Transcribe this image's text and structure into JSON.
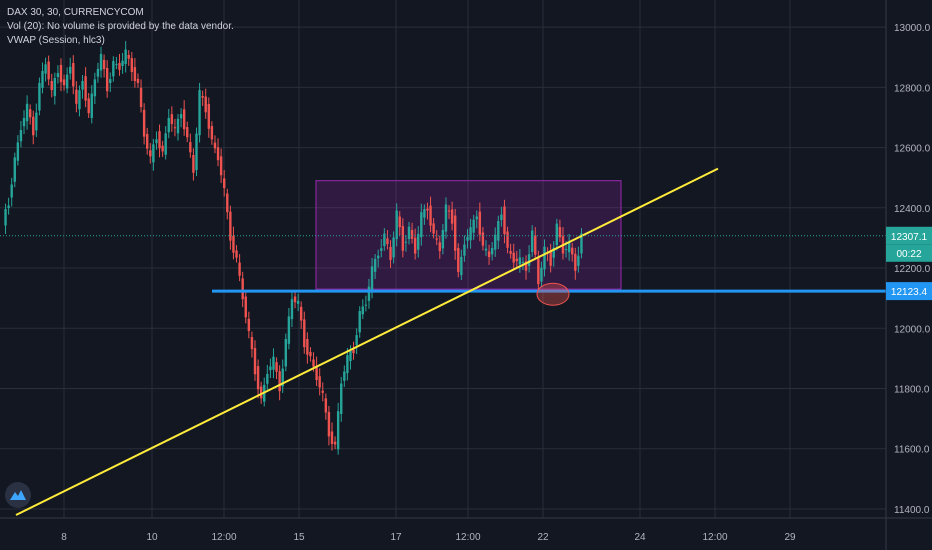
{
  "legend": {
    "symbol": "DAX 30, 30, CURRENCYCOM",
    "volume": "Vol (20): No volume is provided by the data vendor.",
    "vwap": "VWAP (Session, hlc3)"
  },
  "chart_data": {
    "type": "candlestick",
    "y_axis": {
      "ticks": [
        11400,
        11600,
        11800,
        12000,
        12200,
        12400,
        12600,
        12800,
        13000
      ],
      "labels": [
        "11400.0",
        "11600.0",
        "11800.0",
        "12000.0",
        "12200.0",
        "12400.0",
        "12600.0",
        "12800.0",
        "13000.0"
      ],
      "range": [
        11370,
        13090
      ]
    },
    "x_axis": {
      "labels": [
        "8",
        "10",
        "12:00",
        "15",
        "17",
        "12:00",
        "22",
        "24",
        "12:00",
        "29"
      ]
    },
    "last_price": {
      "value": 12307.1,
      "label": "12307.1",
      "countdown": "00:22"
    },
    "support": {
      "value": 12123.4,
      "label": "12123.4",
      "color": "#2196f3"
    },
    "trendline": {
      "color": "#ffeb3b"
    },
    "range_box": {
      "low": 12130,
      "high": 12490,
      "color": "#9c27b0"
    },
    "price_path": [
      12350,
      12420,
      12560,
      12660,
      12740,
      12650,
      12800,
      12880,
      12780,
      12860,
      12800,
      12870,
      12740,
      12830,
      12700,
      12830,
      12900,
      12800,
      12880,
      12860,
      12920,
      12860,
      12800,
      12640,
      12560,
      12640,
      12580,
      12700,
      12660,
      12720,
      12620,
      12520,
      12780,
      12730,
      12620,
      12560,
      12460,
      12300,
      12220,
      12100,
      11980,
      11860,
      11760,
      11850,
      11900,
      11800,
      11950,
      12100,
      12080,
      11950,
      11900,
      11830,
      11780,
      11650,
      11600,
      11820,
      11900,
      11930,
      12050,
      12080,
      12200,
      12250,
      12300,
      12230,
      12380,
      12270,
      12330,
      12250,
      12380,
      12400,
      12300,
      12260,
      12400,
      12360,
      12180,
      12280,
      12330,
      12380,
      12260,
      12240,
      12300,
      12390,
      12260,
      12220,
      12230,
      12200,
      12310,
      12150,
      12260,
      12220,
      12340,
      12250,
      12280,
      12200,
      12300
    ]
  }
}
